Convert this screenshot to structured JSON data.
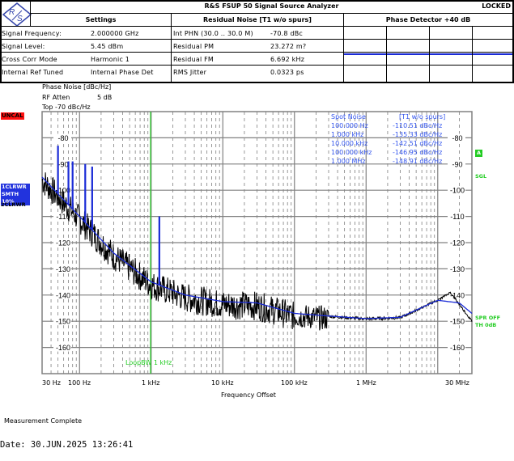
{
  "header": {
    "logo_text": "R&S",
    "title": "R&S FSUP 50 Signal Source Analyzer",
    "status": "LOCKED",
    "settings_heading": "Settings",
    "residual_heading": "Residual Noise [T1 w/o spurs]",
    "phase_det_heading": "Phase Detector +40 dB"
  },
  "settings": [
    {
      "label": "Signal Frequency:",
      "value": "2.000000 GHz"
    },
    {
      "label": "Signal Level:",
      "value": "5.45 dBm"
    },
    {
      "label": "Cross Corr Mode",
      "value": "Harmonic 1"
    },
    {
      "label": "Internal Ref Tuned",
      "value": "Internal Phase Det"
    }
  ],
  "residual": [
    {
      "label": "Int PHN (30.0 .. 30.0 M)",
      "value": "-70.8 dBc"
    },
    {
      "label": "Residual PM",
      "value": "23.272 m?"
    },
    {
      "label": "Residual FM",
      "value": "6.692 kHz"
    },
    {
      "label": "RMS Jitter",
      "value": "0.0323 ps"
    }
  ],
  "chart_info": {
    "ylabel": "Phase Noise [dBc/Hz]",
    "rf_atten_label": "RF Atten",
    "rf_atten_value": "5 dB",
    "top_label": "Top -70 dBc/Hz",
    "uncal": "UNCAL",
    "trace1_line1": "1CLRWR",
    "trace1_line2": "SMTH 10%",
    "trace2": "2CLRWR",
    "marker_a": "A",
    "sgl": "SGL",
    "spr_off": "SPR OFF",
    "th": "TH 0dB",
    "loop_bw": "LoopBW 1 kHz"
  },
  "spot_noise": {
    "title": "Spot Noise",
    "subtitle": "[T1 w/o spurs]",
    "rows": [
      {
        "freq": "100.000 Hz",
        "value": "-110.51 dBc/Hz"
      },
      {
        "freq": "1.000 kHz",
        "value": "-135.33 dBc/Hz"
      },
      {
        "freq": "10.000 kHz",
        "value": "-142.51 dBc/Hz"
      },
      {
        "freq": "100.000 kHz",
        "value": "-146.95 dBc/Hz"
      },
      {
        "freq": "1.000 MHz",
        "value": "-148.91 dBc/Hz"
      }
    ]
  },
  "x_axis": {
    "title": "Frequency Offset",
    "ticks": [
      "30 Hz",
      "100 Hz",
      "1 kHz",
      "10 kHz",
      "100 kHz",
      "1 MHz",
      "30 MHz"
    ]
  },
  "y_axis": {
    "ticks": [
      "-80",
      "-90",
      "-100",
      "-110",
      "-120",
      "-130",
      "-140",
      "-150",
      "-160"
    ]
  },
  "footer": {
    "status": "Measurement Complete",
    "date": "Date: 30.JUN.2025  13:26:41"
  },
  "colors": {
    "trace_raw": "#000000",
    "trace_smooth": "#1a2bd6",
    "spot_text": "#3355ee",
    "green": "#22cc22",
    "uncal_bg": "#ff1010",
    "grid": "#808080"
  },
  "chart_data": {
    "type": "line",
    "title": "Phase Noise [dBc/Hz]",
    "xlabel": "Frequency Offset",
    "ylabel": "Phase Noise [dBc/Hz]",
    "xscale": "log",
    "xlim": [
      30,
      30000000
    ],
    "ylim": [
      -170,
      -70
    ],
    "grid": true,
    "series": [
      {
        "name": "Trace 1 (smoothed, 1CLRWR SMTH 10%)",
        "x": [
          30,
          100,
          300,
          1000,
          3000,
          10000,
          30000,
          100000,
          300000,
          1000000,
          3000000,
          10000000,
          20000000,
          30000000
        ],
        "values": [
          -95,
          -110,
          -124,
          -135,
          -140,
          -142.5,
          -143,
          -147,
          -148,
          -149,
          -148.5,
          -142,
          -143,
          -147
        ]
      },
      {
        "name": "Trace 2 (raw, 2CLRWR)",
        "x": [
          30,
          100,
          300,
          1000,
          3000,
          10000,
          30000,
          100000,
          300000,
          1000000,
          3000000,
          10000000,
          15000000,
          30000000
        ],
        "values": [
          -92,
          -108,
          -120,
          -135,
          -138,
          -141,
          -140,
          -150,
          -147,
          -149,
          -148,
          -142,
          -139,
          -150
        ]
      }
    ],
    "spurs": [
      {
        "x": 50,
        "value": -83
      },
      {
        "x": 70,
        "value": -89
      },
      {
        "x": 80,
        "value": -89
      },
      {
        "x": 120,
        "value": -90
      },
      {
        "x": 150,
        "value": -91
      },
      {
        "x": 1300,
        "value": -110
      }
    ],
    "annotations": [
      "LoopBW 1 kHz at 1 kHz"
    ]
  }
}
